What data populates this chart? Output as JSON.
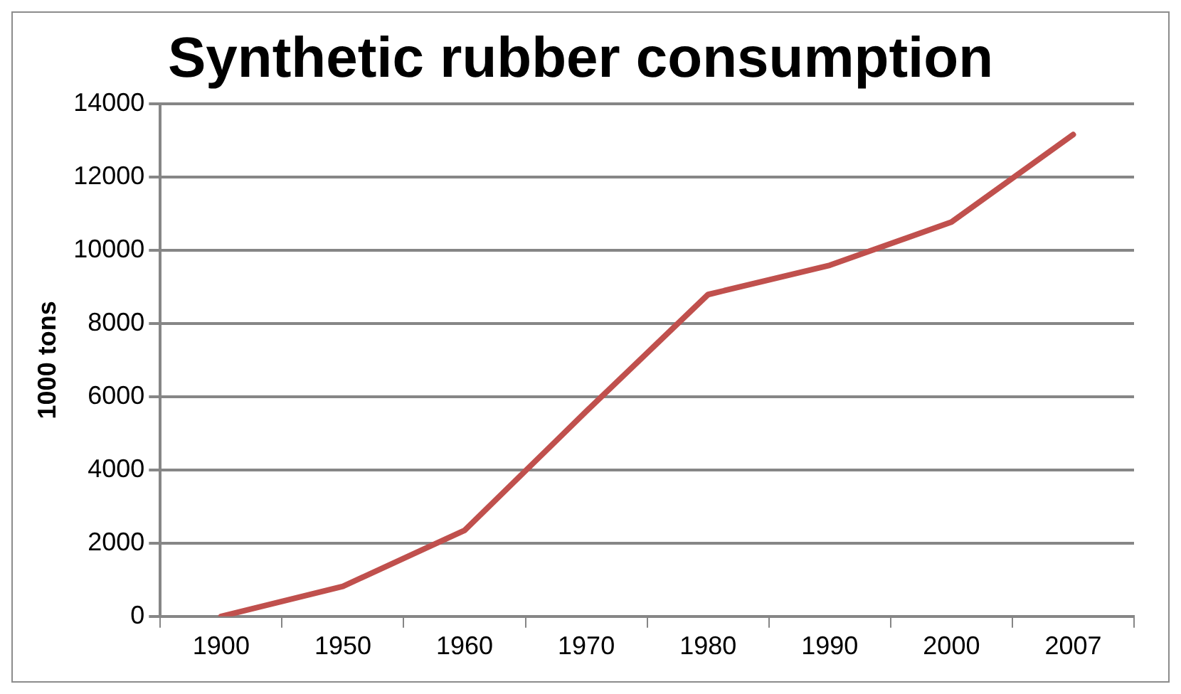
{
  "chart_data": {
    "type": "line",
    "title": "Synthetic rubber consumption",
    "ylabel": "1000 tons",
    "categories": [
      "1900",
      "1950",
      "1960",
      "1970",
      "1980",
      "1990",
      "2000",
      "2007"
    ],
    "series": [
      {
        "color": "#c0504d",
        "values": [
          0,
          820,
          2350,
          5600,
          8790,
          9590,
          10770,
          13160
        ]
      }
    ],
    "ylim": [
      0,
      14000
    ],
    "yticks": [
      0,
      2000,
      4000,
      6000,
      8000,
      10000,
      12000,
      14000
    ],
    "grid": "y",
    "legend": false,
    "marker": "none"
  }
}
